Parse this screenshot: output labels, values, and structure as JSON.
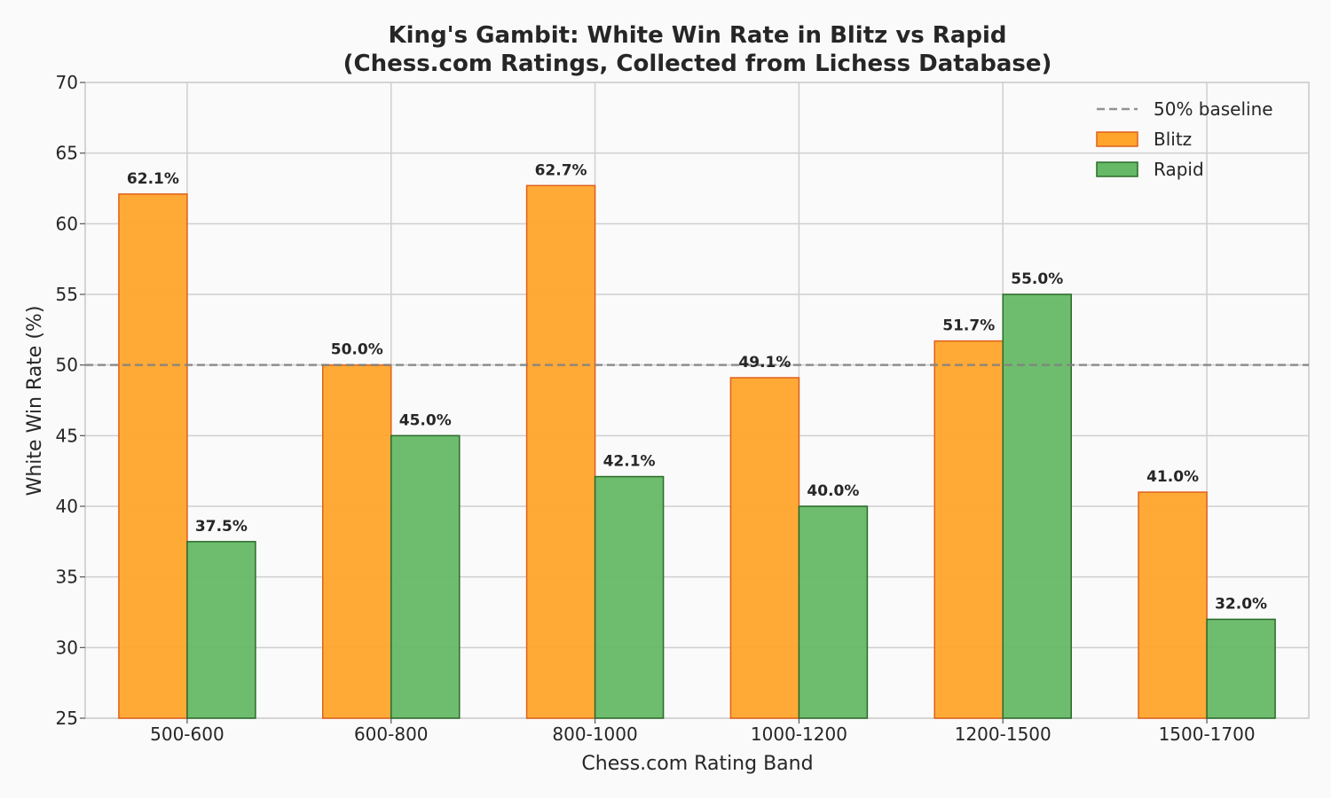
{
  "chart_data": {
    "type": "bar",
    "title_line1": "King's Gambit: White Win Rate in Blitz vs Rapid",
    "title_line2": "(Chess.com Ratings, Collected from Lichess Database)",
    "xlabel": "Chess.com Rating Band",
    "ylabel": "White Win Rate (%)",
    "ylim": [
      25,
      70
    ],
    "yticks": [
      25,
      30,
      35,
      40,
      45,
      50,
      55,
      60,
      65,
      70
    ],
    "categories": [
      "500-600",
      "600-800",
      "800-1000",
      "1000-1200",
      "1200-1500",
      "1500-1700"
    ],
    "series": [
      {
        "name": "Blitz",
        "values": [
          62.1,
          50.0,
          62.7,
          49.1,
          51.7,
          41.0
        ],
        "color": "#ffa52c",
        "edge": "#e0601a"
      },
      {
        "name": "Rapid",
        "values": [
          37.5,
          45.0,
          42.1,
          40.0,
          55.0,
          32.0
        ],
        "color": "#66b966",
        "edge": "#2a6a2a"
      }
    ],
    "baseline": {
      "name": "50% baseline",
      "value": 50,
      "color": "#808080"
    },
    "data_label_suffix": "%",
    "grid": true,
    "legend_position": "top-right"
  }
}
